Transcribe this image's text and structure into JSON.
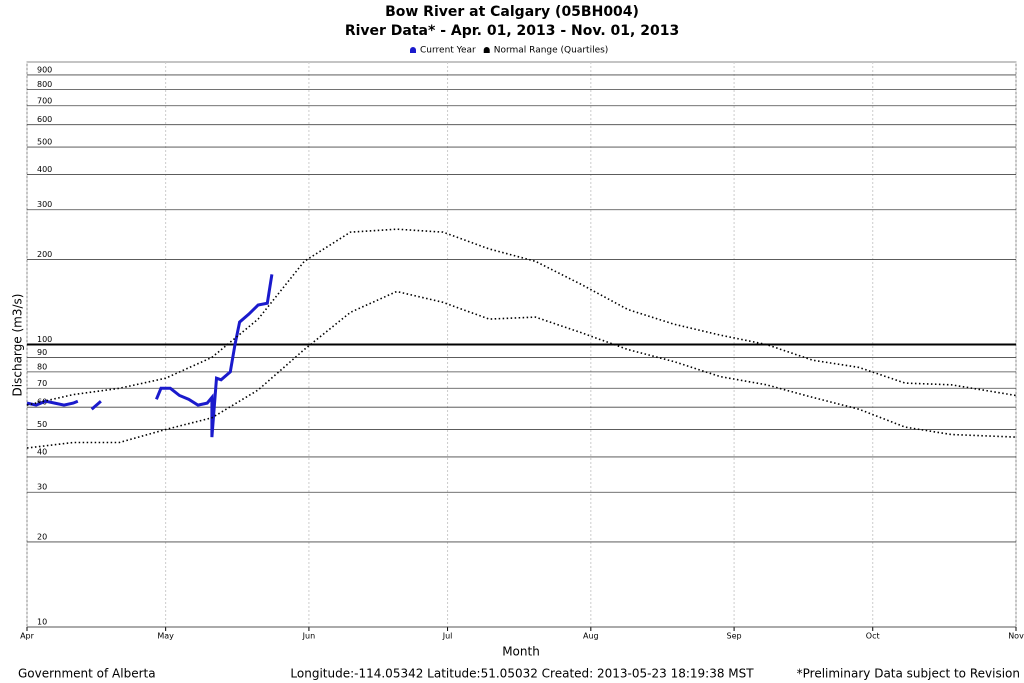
{
  "chart_data": {
    "type": "line",
    "title": "Bow River at Calgary (05BH004)",
    "subtitle": "River Data* - Apr. 01, 2013 - Nov. 01, 2013",
    "x_label": "Month",
    "y_label": "Discharge (m3/s)",
    "log_y": true,
    "grid": true,
    "legend": "top",
    "xlim": [
      0,
      214
    ],
    "xticks": [
      {
        "value": 0,
        "label": "Apr"
      },
      {
        "value": 30,
        "label": "May"
      },
      {
        "value": 61,
        "label": "Jun"
      },
      {
        "value": 91,
        "label": "Jul"
      },
      {
        "value": 122,
        "label": "Aug"
      },
      {
        "value": 153,
        "label": "Sep"
      },
      {
        "value": 183,
        "label": "Oct"
      },
      {
        "value": 214,
        "label": "Nov"
      }
    ],
    "ylim": [
      10,
      1000
    ],
    "yticks": [
      10,
      20,
      30,
      40,
      50,
      60,
      70,
      80,
      90,
      100,
      200,
      300,
      400,
      500,
      600,
      700,
      800,
      900
    ],
    "series": [
      {
        "name": "Current Year",
        "color": "#1a1acc",
        "x": [
          0,
          2,
          4,
          6,
          8,
          10,
          11,
          12,
          14,
          16,
          17,
          28,
          29,
          31,
          33,
          35,
          37,
          39,
          40,
          40,
          41,
          42,
          44,
          45,
          46,
          48,
          50,
          52,
          53
        ],
        "values": [
          62,
          61,
          63,
          62,
          61,
          62,
          63,
          null,
          59,
          63,
          null,
          64,
          70,
          70,
          66,
          64,
          61,
          62,
          65,
          47,
          76,
          75,
          80,
          100,
          120,
          128,
          138,
          140,
          177
        ]
      },
      {
        "name": "Normal Range (Quartiles)",
        "color": "#000000",
        "x": [
          0,
          10,
          20,
          30,
          40,
          50,
          60,
          70,
          80,
          90,
          100,
          110,
          120,
          130,
          140,
          150,
          160,
          170,
          180,
          190,
          200,
          214
        ],
        "upper": [
          61,
          66.5,
          70,
          76,
          90,
          123,
          197,
          250,
          256,
          250,
          218,
          197,
          163,
          133,
          118,
          108,
          100,
          88,
          83,
          73,
          72,
          66
        ],
        "lower": [
          43,
          45,
          45,
          50,
          55,
          69,
          96,
          130,
          154,
          141,
          123,
          125,
          110,
          96,
          87,
          77,
          72,
          65,
          59,
          51,
          48,
          47
        ]
      }
    ],
    "footer_left": "Government of Alberta",
    "footer_center": "Longitude:-114.05342 Latitude:51.05032  Created: 2013-05-23 18:19:38 MST",
    "footer_right": "*Preliminary Data subject to Revision"
  }
}
